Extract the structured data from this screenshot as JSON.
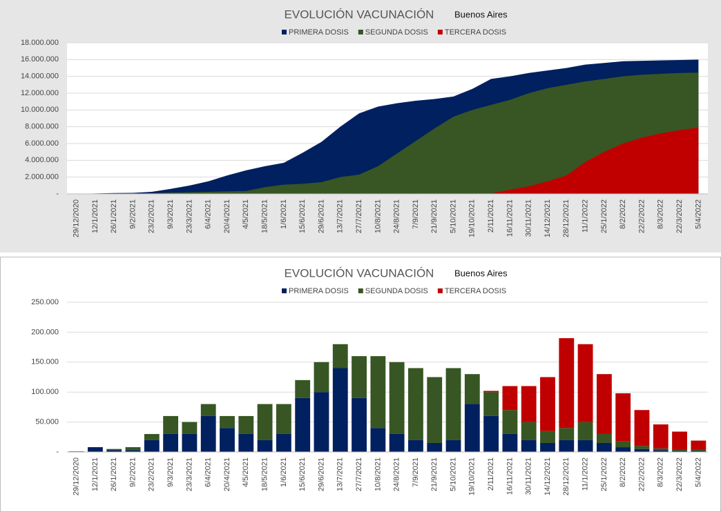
{
  "chart_data": [
    {
      "type": "area",
      "title": "EVOLUCIÓN VACUNACIÓN",
      "subtitle": "Buenos Aires",
      "categories": [
        "29/12/2020",
        "12/1/2021",
        "26/1/2021",
        "9/2/2021",
        "23/2/2021",
        "9/3/2021",
        "23/3/2021",
        "6/4/2021",
        "20/4/2021",
        "4/5/2021",
        "18/5/2021",
        "1/6/2021",
        "15/6/2021",
        "29/6/2021",
        "13/7/2021",
        "27/7/2021",
        "10/8/2021",
        "24/8/2021",
        "7/9/2021",
        "21/9/2021",
        "5/10/2021",
        "19/10/2021",
        "2/11/2021",
        "16/11/2021",
        "30/11/2021",
        "14/12/2021",
        "28/12/2021",
        "11/1/2022",
        "25/1/2022",
        "8/2/2022",
        "22/2/2022",
        "8/3/2022",
        "22/3/2022",
        "5/4/2022"
      ],
      "series": [
        {
          "name": "PRIMERA DOSIS",
          "color": "#002060",
          "values": [
            0,
            50000,
            100000,
            120000,
            250000,
            600000,
            1000000,
            1500000,
            2200000,
            2800000,
            3300000,
            3700000,
            4900000,
            6200000,
            8000000,
            9600000,
            10400000,
            10800000,
            11100000,
            11300000,
            11600000,
            12500000,
            13700000,
            14000000,
            14400000,
            14700000,
            15000000,
            15400000,
            15600000,
            15800000,
            15850000,
            15900000,
            15950000,
            16000000
          ]
        },
        {
          "name": "SEGUNDA DOSIS",
          "color": "#375623",
          "values": [
            0,
            0,
            20000,
            50000,
            80000,
            150000,
            200000,
            250000,
            300000,
            350000,
            800000,
            1100000,
            1200000,
            1400000,
            2000000,
            2300000,
            3300000,
            4800000,
            6300000,
            7800000,
            9200000,
            10000000,
            10600000,
            11200000,
            12000000,
            12600000,
            13000000,
            13400000,
            13700000,
            14000000,
            14200000,
            14300000,
            14400000,
            14450000
          ]
        },
        {
          "name": "TERCERA DOSIS",
          "color": "#c00000",
          "values": [
            0,
            0,
            0,
            0,
            0,
            0,
            0,
            0,
            0,
            0,
            0,
            0,
            0,
            0,
            0,
            0,
            0,
            0,
            0,
            0,
            0,
            0,
            50000,
            500000,
            900000,
            1500000,
            2200000,
            3800000,
            5000000,
            6000000,
            6700000,
            7200000,
            7600000,
            7900000
          ]
        }
      ],
      "ylim": [
        0,
        18000000
      ],
      "yticks": [
        {
          "value": 0,
          "label": "-"
        },
        {
          "value": 2000000,
          "label": "2.000.000"
        },
        {
          "value": 4000000,
          "label": "4.000.000"
        },
        {
          "value": 6000000,
          "label": "6.000.000"
        },
        {
          "value": 8000000,
          "label": "8.000.000"
        },
        {
          "value": 10000000,
          "label": "10.000.000"
        },
        {
          "value": 12000000,
          "label": "12.000.000"
        },
        {
          "value": 14000000,
          "label": "14.000.000"
        },
        {
          "value": 16000000,
          "label": "16.000.000"
        },
        {
          "value": 18000000,
          "label": "18.000.000"
        }
      ],
      "grid": true
    },
    {
      "type": "stacked_bar",
      "title": "EVOLUCIÓN VACUNACIÓN",
      "subtitle": "Buenos Aires",
      "categories": [
        "29/12/2020",
        "12/1/2021",
        "26/1/2021",
        "9/2/2021",
        "23/2/2021",
        "9/3/2021",
        "23/3/2021",
        "6/4/2021",
        "20/4/2021",
        "4/5/2021",
        "18/5/2021",
        "1/6/2021",
        "15/6/2021",
        "29/6/2021",
        "13/7/2021",
        "27/7/2021",
        "10/8/2021",
        "24/8/2021",
        "7/9/2021",
        "21/9/2021",
        "5/10/2021",
        "19/10/2021",
        "2/11/2021",
        "16/11/2021",
        "30/11/2021",
        "14/12/2021",
        "28/12/2021",
        "11/1/2022",
        "25/1/2022",
        "8/2/2022",
        "22/2/2022",
        "8/3/2022",
        "22/3/2022",
        "5/4/2022"
      ],
      "series": [
        {
          "name": "PRIMERA DOSIS",
          "color": "#002060",
          "values": [
            1000,
            8000,
            3000,
            3000,
            20000,
            30000,
            30000,
            60000,
            40000,
            30000,
            20000,
            30000,
            90000,
            100000,
            140000,
            90000,
            40000,
            30000,
            20000,
            15000,
            20000,
            80000,
            60000,
            30000,
            20000,
            15000,
            20000,
            20000,
            15000,
            8000,
            5000,
            3000,
            2000,
            2000
          ]
        },
        {
          "name": "SEGUNDA DOSIS",
          "color": "#375623",
          "values": [
            0,
            0,
            2000,
            5000,
            10000,
            30000,
            20000,
            20000,
            20000,
            30000,
            60000,
            50000,
            30000,
            50000,
            40000,
            70000,
            120000,
            120000,
            120000,
            110000,
            120000,
            50000,
            40000,
            40000,
            30000,
            20000,
            20000,
            30000,
            15000,
            10000,
            5000,
            3000,
            2000,
            2000
          ]
        },
        {
          "name": "TERCERA DOSIS",
          "color": "#c00000",
          "values": [
            0,
            0,
            0,
            0,
            0,
            0,
            0,
            0,
            0,
            0,
            0,
            0,
            0,
            0,
            0,
            0,
            0,
            0,
            0,
            0,
            0,
            0,
            2000,
            40000,
            60000,
            90000,
            150000,
            130000,
            100000,
            80000,
            60000,
            40000,
            30000,
            15000
          ]
        }
      ],
      "ylim": [
        0,
        250000
      ],
      "yticks": [
        {
          "value": 0,
          "label": "-"
        },
        {
          "value": 50000,
          "label": "50.000"
        },
        {
          "value": 100000,
          "label": "100.000"
        },
        {
          "value": 150000,
          "label": "150.000"
        },
        {
          "value": 200000,
          "label": "200.000"
        },
        {
          "value": 250000,
          "label": "250.000"
        }
      ],
      "grid": true
    }
  ]
}
